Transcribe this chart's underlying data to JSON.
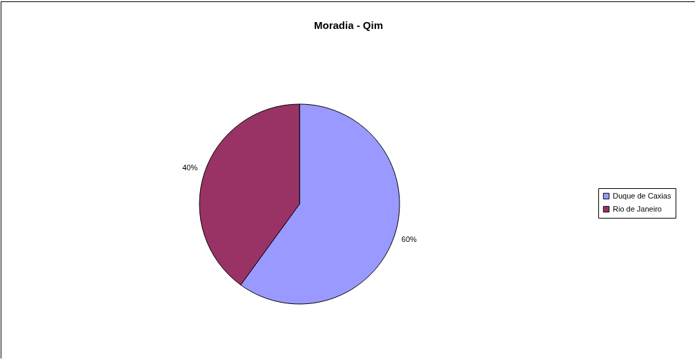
{
  "chart_data": {
    "type": "pie",
    "title": "Moradia - Qim",
    "categories": [
      "Duque de Caxias",
      "Rio de Janeiro"
    ],
    "values": [
      60,
      40
    ],
    "colors": [
      "#9999ff",
      "#993366"
    ],
    "value_labels": [
      "60%",
      "40%"
    ],
    "legend": "right"
  }
}
